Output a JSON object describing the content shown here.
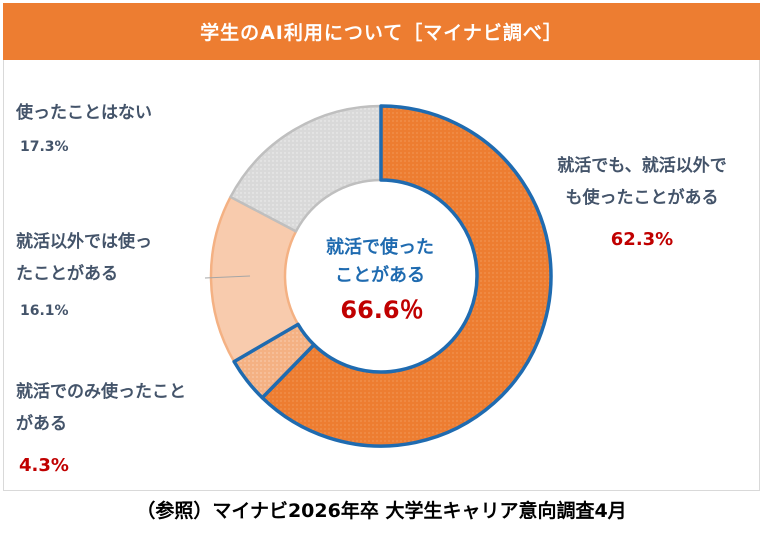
{
  "chart_data": {
    "type": "pie",
    "title": "学生のAI利用について［マイナビ調べ］",
    "center_label": "就活で使ったことがある",
    "center_label_lines": [
      "就活で使った",
      "ことがある"
    ],
    "center_value": "66.6％",
    "slices": [
      {
        "label_lines": [
          "就活でも、就活以外で",
          "も使ったことがある"
        ],
        "value": 62.3,
        "value_label": "62.3%",
        "color": "#ed7d31"
      },
      {
        "label_lines": [
          "就活でのみ使ったこと",
          "がある"
        ],
        "value": 4.3,
        "value_label": "4.3%",
        "color": "#f4b183"
      },
      {
        "label_lines": [
          "就活以外では使っ",
          "たことがある"
        ],
        "value": 16.1,
        "value_label": "16.1%",
        "color": "#f8cbad"
      },
      {
        "label_lines": [
          "使ったことはない"
        ],
        "value": 17.3,
        "value_label": "17.3%",
        "color": "#d9d9d9"
      }
    ],
    "highlight_color": "#1f6bb0"
  },
  "footer": "（参照）マイナビ2026年卒 大学生キャリア意向調査4月"
}
